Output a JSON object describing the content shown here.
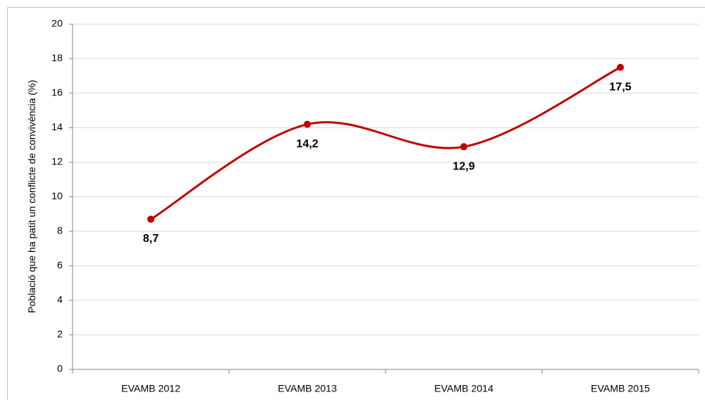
{
  "chart_data": {
    "type": "line",
    "y_label": "Població que ha patit un conflicte de convivència (%)",
    "categories": [
      "EVAMB 2012",
      "EVAMB 2013",
      "EVAMB 2014",
      "EVAMB 2015"
    ],
    "series": [
      {
        "name": "Població que ha patit un conflicte de convivència",
        "color": "#c00000",
        "values": [
          8.7,
          14.2,
          12.9,
          17.5
        ],
        "value_labels": [
          "8,7",
          "14,2",
          "12,9",
          "17,5"
        ]
      }
    ],
    "ylim": [
      0,
      20
    ],
    "yticks": [
      0,
      2,
      4,
      6,
      8,
      10,
      12,
      14,
      16,
      18,
      20
    ],
    "grid": true,
    "smooth": true
  }
}
